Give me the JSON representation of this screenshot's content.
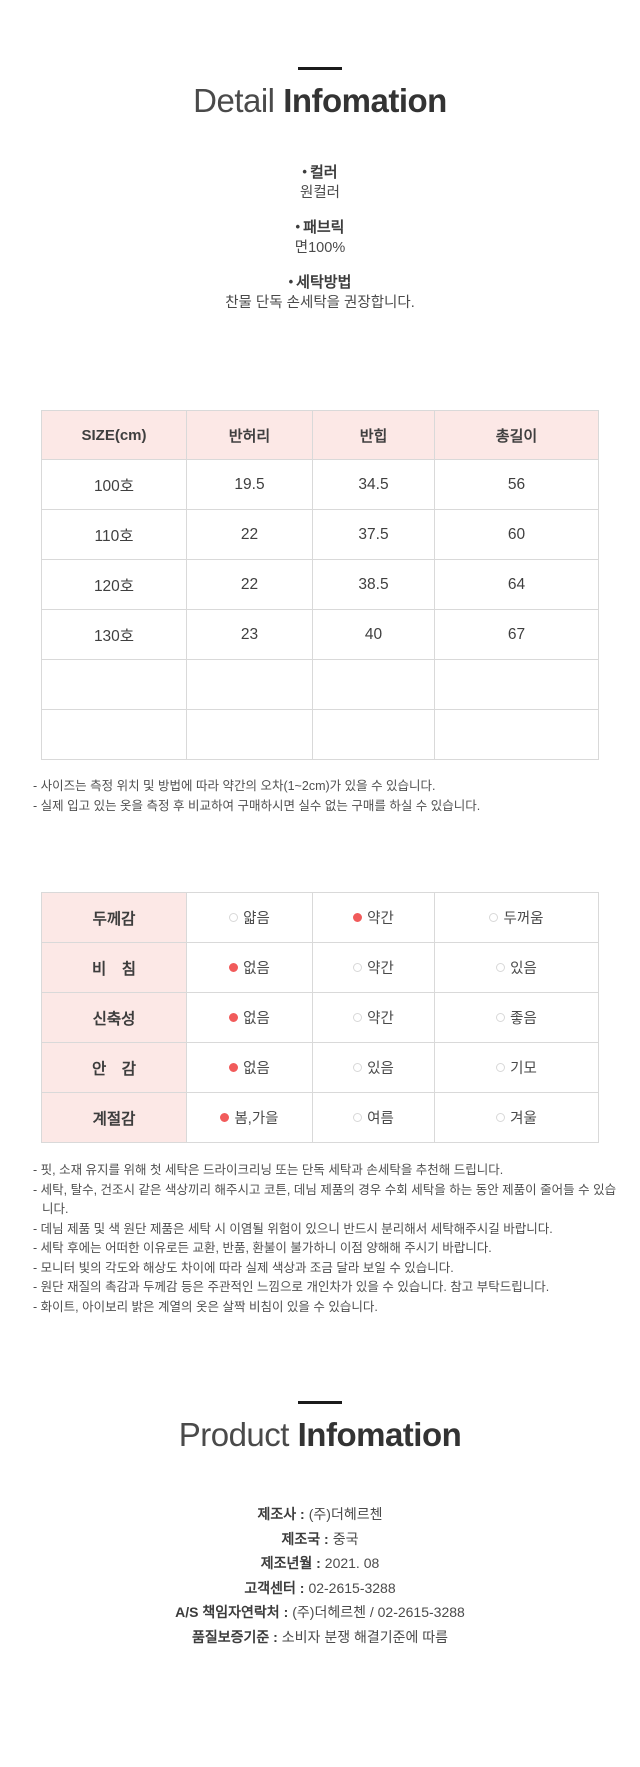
{
  "icons": {
    "bullet": "•"
  },
  "detail_header": {
    "light": "Detail",
    "bold": "Infomation"
  },
  "detail_sections": [
    {
      "label": "컬러",
      "value": "원컬러"
    },
    {
      "label": "패브릭",
      "value": "면100%"
    },
    {
      "label": "세탁방법",
      "value": "찬물 단독 손세탁을 권장합니다."
    }
  ],
  "size_table": {
    "headers": [
      "SIZE(cm)",
      "반허리",
      "반힙",
      "총길이"
    ],
    "rows": [
      [
        "100호",
        "19.5",
        "34.5",
        "56"
      ],
      [
        "110호",
        "22",
        "37.5",
        "60"
      ],
      [
        "120호",
        "22",
        "38.5",
        "64"
      ],
      [
        "130호",
        "23",
        "40",
        "67"
      ],
      [
        "",
        "",
        "",
        ""
      ],
      [
        "",
        "",
        "",
        ""
      ]
    ]
  },
  "size_notes": [
    "- 사이즈는 측정 위치 및 방법에 따라 약간의 오차(1~2cm)가 있을 수 있습니다.",
    "- 실제 입고 있는 옷을 측정 후 비교하여 구매하시면 실수 없는 구매를 하실 수 있습니다."
  ],
  "fabric_table": {
    "rows": [
      {
        "label": "두께감",
        "options": [
          {
            "text": "얇음",
            "selected": false
          },
          {
            "text": "약간",
            "selected": true
          },
          {
            "text": "두꺼움",
            "selected": false
          }
        ]
      },
      {
        "label": "비　침",
        "options": [
          {
            "text": "없음",
            "selected": true
          },
          {
            "text": "약간",
            "selected": false
          },
          {
            "text": "있음",
            "selected": false
          }
        ]
      },
      {
        "label": "신축성",
        "options": [
          {
            "text": "없음",
            "selected": true
          },
          {
            "text": "약간",
            "selected": false
          },
          {
            "text": "좋음",
            "selected": false
          }
        ]
      },
      {
        "label": "안　감",
        "options": [
          {
            "text": "없음",
            "selected": true
          },
          {
            "text": "있음",
            "selected": false
          },
          {
            "text": "기모",
            "selected": false
          }
        ]
      },
      {
        "label": "계절감",
        "options": [
          {
            "text": "봄,가을",
            "selected": true
          },
          {
            "text": "여름",
            "selected": false
          },
          {
            "text": "겨울",
            "selected": false
          }
        ]
      }
    ]
  },
  "care_notes": [
    "- 핏, 소재 유지를 위해 첫 세탁은 드라이크리닝 또는 단독 세탁과 손세탁을 추천해 드립니다.",
    "- 세탁, 탈수, 건조시 같은 색상끼리 해주시고 코튼, 데님 제품의 경우 수회 세탁을 하는 동안 제품이 줄어들 수 있습니다.",
    "- 데님 제품 및 색 원단 제품은 세탁 시 이염될 위험이 있으니 반드시 분리해서 세탁해주시길 바랍니다.",
    "- 세탁 후에는 어떠한 이유로든 교환, 반품, 환불이 불가하니 이점 양해해 주시기 바랍니다.",
    "- 모니터 빛의 각도와 해상도 차이에 따라 실제 색상과 조금 달라 보일 수 있습니다.",
    "- 원단 재질의 촉감과 두께감 등은 주관적인 느낌으로 개인차가 있을 수 있습니다. 참고 부탁드립니다.",
    "- 화이트, 아이보리 밝은 계열의 옷은 살짝 비침이 있을 수 있습니다."
  ],
  "product_header": {
    "light": "Product",
    "bold": "Infomation"
  },
  "product_info": [
    {
      "label": "제조사 :",
      "value": "(주)더헤르첸"
    },
    {
      "label": "제조국 :",
      "value": "중국"
    },
    {
      "label": "제조년월 :",
      "value": "2021. 08"
    },
    {
      "label": "고객센터 :",
      "value": "02-2615-3288"
    },
    {
      "label": "A/S 책임자연락처 :",
      "value": "(주)더헤르첸 / 02-2615-3288"
    },
    {
      "label": "품질보증기준 :",
      "value": "소비자 분쟁 해결기준에 따름"
    }
  ],
  "colors": {
    "accent_pink": "#fce8e6",
    "radio_selected": "#f15b5b"
  }
}
